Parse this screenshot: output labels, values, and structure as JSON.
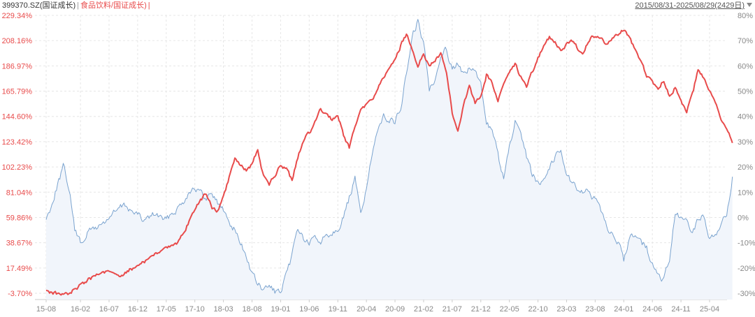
{
  "header": {
    "series1_label": "399370.SZ(国证成长)",
    "separator": "|",
    "series2_label": "食品饮料/国证成长)",
    "trailing_separator": "|",
    "date_range": "2015/08/31-2025/08/29(2429日)"
  },
  "colors": {
    "series1_line": "#7aa3cf",
    "series1_fill": "#f1f5fb",
    "series2_line": "#e84b4b",
    "left_axis_text": "#e84b4b",
    "right_axis_text": "#888888",
    "x_axis_text": "#888888",
    "grid": "#e6e6e6"
  },
  "chart_data": {
    "type": "line",
    "x_tick_labels": [
      "15-08",
      "16-02",
      "16-07",
      "16-12",
      "17-05",
      "17-10",
      "18-03",
      "18-08",
      "19-01",
      "19-06",
      "19-11",
      "20-04",
      "20-09",
      "21-02",
      "21-07",
      "21-12",
      "22-05",
      "22-10",
      "23-03",
      "23-08",
      "24-01",
      "24-06",
      "24-11",
      "25-04"
    ],
    "left_axis": {
      "tick_labels": [
        "229.34%",
        "208.16%",
        "186.97%",
        "165.79%",
        "144.60%",
        "123.42%",
        "102.23%",
        "81.04%",
        "59.86%",
        "38.67%",
        "17.49%",
        "-3.70%"
      ],
      "range": [
        -3.7,
        229.34
      ]
    },
    "right_axis": {
      "tick_labels": [
        "80%",
        "70%",
        "60%",
        "50%",
        "40%",
        "30%",
        "20%",
        "10%",
        "0%",
        "-10%",
        "-20%",
        "-30%"
      ],
      "range": [
        -30,
        80
      ]
    },
    "series": [
      {
        "name": "399370.SZ(国证成长)",
        "axis": "left",
        "anchors": [
          [
            "15-08",
            58
          ],
          [
            "15-09",
            72
          ],
          [
            "15-10",
            88
          ],
          [
            "15-11",
            102
          ],
          [
            "15-12",
            85
          ],
          [
            "16-01",
            50
          ],
          [
            "16-02",
            38
          ],
          [
            "16-03",
            46
          ],
          [
            "16-04",
            50
          ],
          [
            "16-05",
            52
          ],
          [
            "16-06",
            55
          ],
          [
            "16-07",
            60
          ],
          [
            "16-08",
            64
          ],
          [
            "16-09",
            68
          ],
          [
            "16-10",
            70
          ],
          [
            "16-11",
            65
          ],
          [
            "16-12",
            62
          ],
          [
            "17-01",
            57
          ],
          [
            "17-02",
            60
          ],
          [
            "17-03",
            63
          ],
          [
            "17-04",
            60
          ],
          [
            "17-05",
            57
          ],
          [
            "17-06",
            64
          ],
          [
            "17-07",
            68
          ],
          [
            "17-08",
            74
          ],
          [
            "17-09",
            82
          ],
          [
            "17-10",
            86
          ],
          [
            "17-11",
            80
          ],
          [
            "17-12",
            74
          ],
          [
            "18-01",
            82
          ],
          [
            "18-02",
            72
          ],
          [
            "18-03",
            66
          ],
          [
            "18-04",
            56
          ],
          [
            "18-05",
            50
          ],
          [
            "18-06",
            38
          ],
          [
            "18-07",
            28
          ],
          [
            "18-08",
            12
          ],
          [
            "18-09",
            4
          ],
          [
            "18-10",
            -2
          ],
          [
            "18-11",
            2
          ],
          [
            "18-12",
            -2
          ],
          [
            "19-01",
            -4
          ],
          [
            "19-02",
            10
          ],
          [
            "19-03",
            28
          ],
          [
            "19-04",
            52
          ],
          [
            "19-05",
            42
          ],
          [
            "19-06",
            38
          ],
          [
            "19-07",
            42
          ],
          [
            "19-08",
            40
          ],
          [
            "19-09",
            46
          ],
          [
            "19-10",
            48
          ],
          [
            "19-11",
            52
          ],
          [
            "19-12",
            60
          ],
          [
            "20-01",
            76
          ],
          [
            "20-02",
            92
          ],
          [
            "20-03",
            62
          ],
          [
            "20-04",
            86
          ],
          [
            "20-05",
            112
          ],
          [
            "20-06",
            130
          ],
          [
            "20-07",
            148
          ],
          [
            "20-08",
            142
          ],
          [
            "20-09",
            140
          ],
          [
            "20-10",
            152
          ],
          [
            "20-11",
            180
          ],
          [
            "20-12",
            210
          ],
          [
            "21-01",
            225
          ],
          [
            "21-02",
            205
          ],
          [
            "21-03",
            168
          ],
          [
            "21-04",
            178
          ],
          [
            "21-05",
            196
          ],
          [
            "21-06",
            202
          ],
          [
            "21-07",
            185
          ],
          [
            "21-08",
            190
          ],
          [
            "21-09",
            178
          ],
          [
            "21-10",
            185
          ],
          [
            "21-11",
            182
          ],
          [
            "21-12",
            170
          ],
          [
            "22-01",
            142
          ],
          [
            "22-02",
            132
          ],
          [
            "22-03",
            112
          ],
          [
            "22-04",
            92
          ],
          [
            "22-05",
            118
          ],
          [
            "22-06",
            140
          ],
          [
            "22-07",
            126
          ],
          [
            "22-08",
            110
          ],
          [
            "22-09",
            96
          ],
          [
            "22-10",
            88
          ],
          [
            "22-11",
            94
          ],
          [
            "22-12",
            102
          ],
          [
            "23-01",
            112
          ],
          [
            "23-02",
            116
          ],
          [
            "23-03",
            98
          ],
          [
            "23-04",
            88
          ],
          [
            "23-05",
            84
          ],
          [
            "23-06",
            82
          ],
          [
            "23-07",
            80
          ],
          [
            "23-08",
            74
          ],
          [
            "23-09",
            64
          ],
          [
            "23-10",
            52
          ],
          [
            "23-11",
            48
          ],
          [
            "23-12",
            38
          ],
          [
            "24-01",
            24
          ],
          [
            "24-02",
            44
          ],
          [
            "24-03",
            46
          ],
          [
            "24-04",
            40
          ],
          [
            "24-05",
            34
          ],
          [
            "24-06",
            20
          ],
          [
            "24-07",
            10
          ],
          [
            "24-08",
            8
          ],
          [
            "24-09",
            24
          ],
          [
            "24-10",
            62
          ],
          [
            "24-11",
            58
          ],
          [
            "24-12",
            56
          ],
          [
            "25-01",
            48
          ],
          [
            "25-02",
            58
          ],
          [
            "25-03",
            60
          ],
          [
            "25-04",
            42
          ],
          [
            "25-05",
            48
          ],
          [
            "25-06",
            52
          ],
          [
            "25-07",
            62
          ],
          [
            "25-08",
            94
          ]
        ]
      },
      {
        "name": "食品饮料/国证成长)",
        "axis": "right",
        "anchors": [
          [
            "15-08",
            -28.8
          ],
          [
            "15-09",
            -29.6
          ],
          [
            "15-10",
            -30.2
          ],
          [
            "15-11",
            -30.5
          ],
          [
            "15-12",
            -29.8
          ],
          [
            "16-01",
            -28.5
          ],
          [
            "16-02",
            -27.0
          ],
          [
            "16-03",
            -25.5
          ],
          [
            "16-04",
            -23.8
          ],
          [
            "16-05",
            -22.5
          ],
          [
            "16-06",
            -21.0
          ],
          [
            "16-07",
            -21.8
          ],
          [
            "16-08",
            -22.8
          ],
          [
            "16-09",
            -23.0
          ],
          [
            "16-10",
            -21.5
          ],
          [
            "16-11",
            -20.2
          ],
          [
            "16-12",
            -19.0
          ],
          [
            "17-01",
            -17.5
          ],
          [
            "17-02",
            -16.2
          ],
          [
            "17-03",
            -14.8
          ],
          [
            "17-04",
            -13.2
          ],
          [
            "17-05",
            -12.0
          ],
          [
            "17-06",
            -11.5
          ],
          [
            "17-07",
            -10.5
          ],
          [
            "17-08",
            -6.5
          ],
          [
            "17-09",
            -1.5
          ],
          [
            "17-10",
            2.5
          ],
          [
            "17-11",
            7.0
          ],
          [
            "17-12",
            9.5
          ],
          [
            "18-01",
            4.0
          ],
          [
            "18-02",
            2.5
          ],
          [
            "18-03",
            8.5
          ],
          [
            "18-04",
            16.0
          ],
          [
            "18-05",
            23.5
          ],
          [
            "18-06",
            21.0
          ],
          [
            "18-07",
            18.5
          ],
          [
            "18-08",
            21.0
          ],
          [
            "18-09",
            27.0
          ],
          [
            "18-10",
            16.5
          ],
          [
            "18-11",
            13.0
          ],
          [
            "18-12",
            16.5
          ],
          [
            "19-01",
            21.0
          ],
          [
            "19-02",
            19.5
          ],
          [
            "19-03",
            14.5
          ],
          [
            "19-04",
            24.0
          ],
          [
            "19-05",
            31.0
          ],
          [
            "19-06",
            33.5
          ],
          [
            "19-07",
            38.0
          ],
          [
            "19-08",
            43.0
          ],
          [
            "19-09",
            40.5
          ],
          [
            "19-10",
            38.5
          ],
          [
            "19-11",
            41.0
          ],
          [
            "19-12",
            32.5
          ],
          [
            "20-01",
            27.5
          ],
          [
            "20-02",
            35.0
          ],
          [
            "20-03",
            43.0
          ],
          [
            "20-04",
            44.0
          ],
          [
            "20-05",
            46.5
          ],
          [
            "20-06",
            51.0
          ],
          [
            "20-07",
            55.0
          ],
          [
            "20-08",
            58.5
          ],
          [
            "20-09",
            62.0
          ],
          [
            "20-10",
            68.0
          ],
          [
            "20-11",
            72.5
          ],
          [
            "20-12",
            66.5
          ],
          [
            "21-01",
            59.0
          ],
          [
            "21-02",
            65.0
          ],
          [
            "21-03",
            59.5
          ],
          [
            "21-04",
            62.5
          ],
          [
            "21-05",
            64.5
          ],
          [
            "21-06",
            58.0
          ],
          [
            "21-07",
            41.5
          ],
          [
            "21-08",
            35.0
          ],
          [
            "21-09",
            45.0
          ],
          [
            "21-10",
            52.0
          ],
          [
            "21-11",
            45.5
          ],
          [
            "21-12",
            48.0
          ],
          [
            "22-01",
            56.5
          ],
          [
            "22-02",
            53.5
          ],
          [
            "22-03",
            46.0
          ],
          [
            "22-04",
            52.5
          ],
          [
            "22-05",
            56.5
          ],
          [
            "22-06",
            61.0
          ],
          [
            "22-07",
            55.5
          ],
          [
            "22-08",
            52.0
          ],
          [
            "22-09",
            57.5
          ],
          [
            "22-10",
            63.0
          ],
          [
            "22-11",
            67.5
          ],
          [
            "22-12",
            71.5
          ],
          [
            "23-01",
            69.0
          ],
          [
            "23-02",
            66.0
          ],
          [
            "23-03",
            68.5
          ],
          [
            "23-04",
            69.5
          ],
          [
            "23-05",
            67.0
          ],
          [
            "23-06",
            65.5
          ],
          [
            "23-07",
            70.5
          ],
          [
            "23-08",
            72.0
          ],
          [
            "23-09",
            71.0
          ],
          [
            "23-10",
            68.5
          ],
          [
            "23-11",
            71.5
          ],
          [
            "23-12",
            72.5
          ],
          [
            "24-01",
            74.0
          ],
          [
            "24-02",
            71.5
          ],
          [
            "24-03",
            66.0
          ],
          [
            "24-04",
            61.0
          ],
          [
            "24-05",
            56.0
          ],
          [
            "24-06",
            53.5
          ],
          [
            "24-07",
            51.5
          ],
          [
            "24-08",
            54.5
          ],
          [
            "24-09",
            48.5
          ],
          [
            "24-10",
            51.5
          ],
          [
            "24-11",
            46.5
          ],
          [
            "24-12",
            42.0
          ],
          [
            "25-01",
            48.5
          ],
          [
            "25-02",
            58.5
          ],
          [
            "25-03",
            55.0
          ],
          [
            "25-04",
            49.5
          ],
          [
            "25-05",
            45.5
          ],
          [
            "25-06",
            39.5
          ],
          [
            "25-07",
            34.5
          ],
          [
            "25-08",
            29.5
          ]
        ]
      }
    ],
    "grid": true
  }
}
